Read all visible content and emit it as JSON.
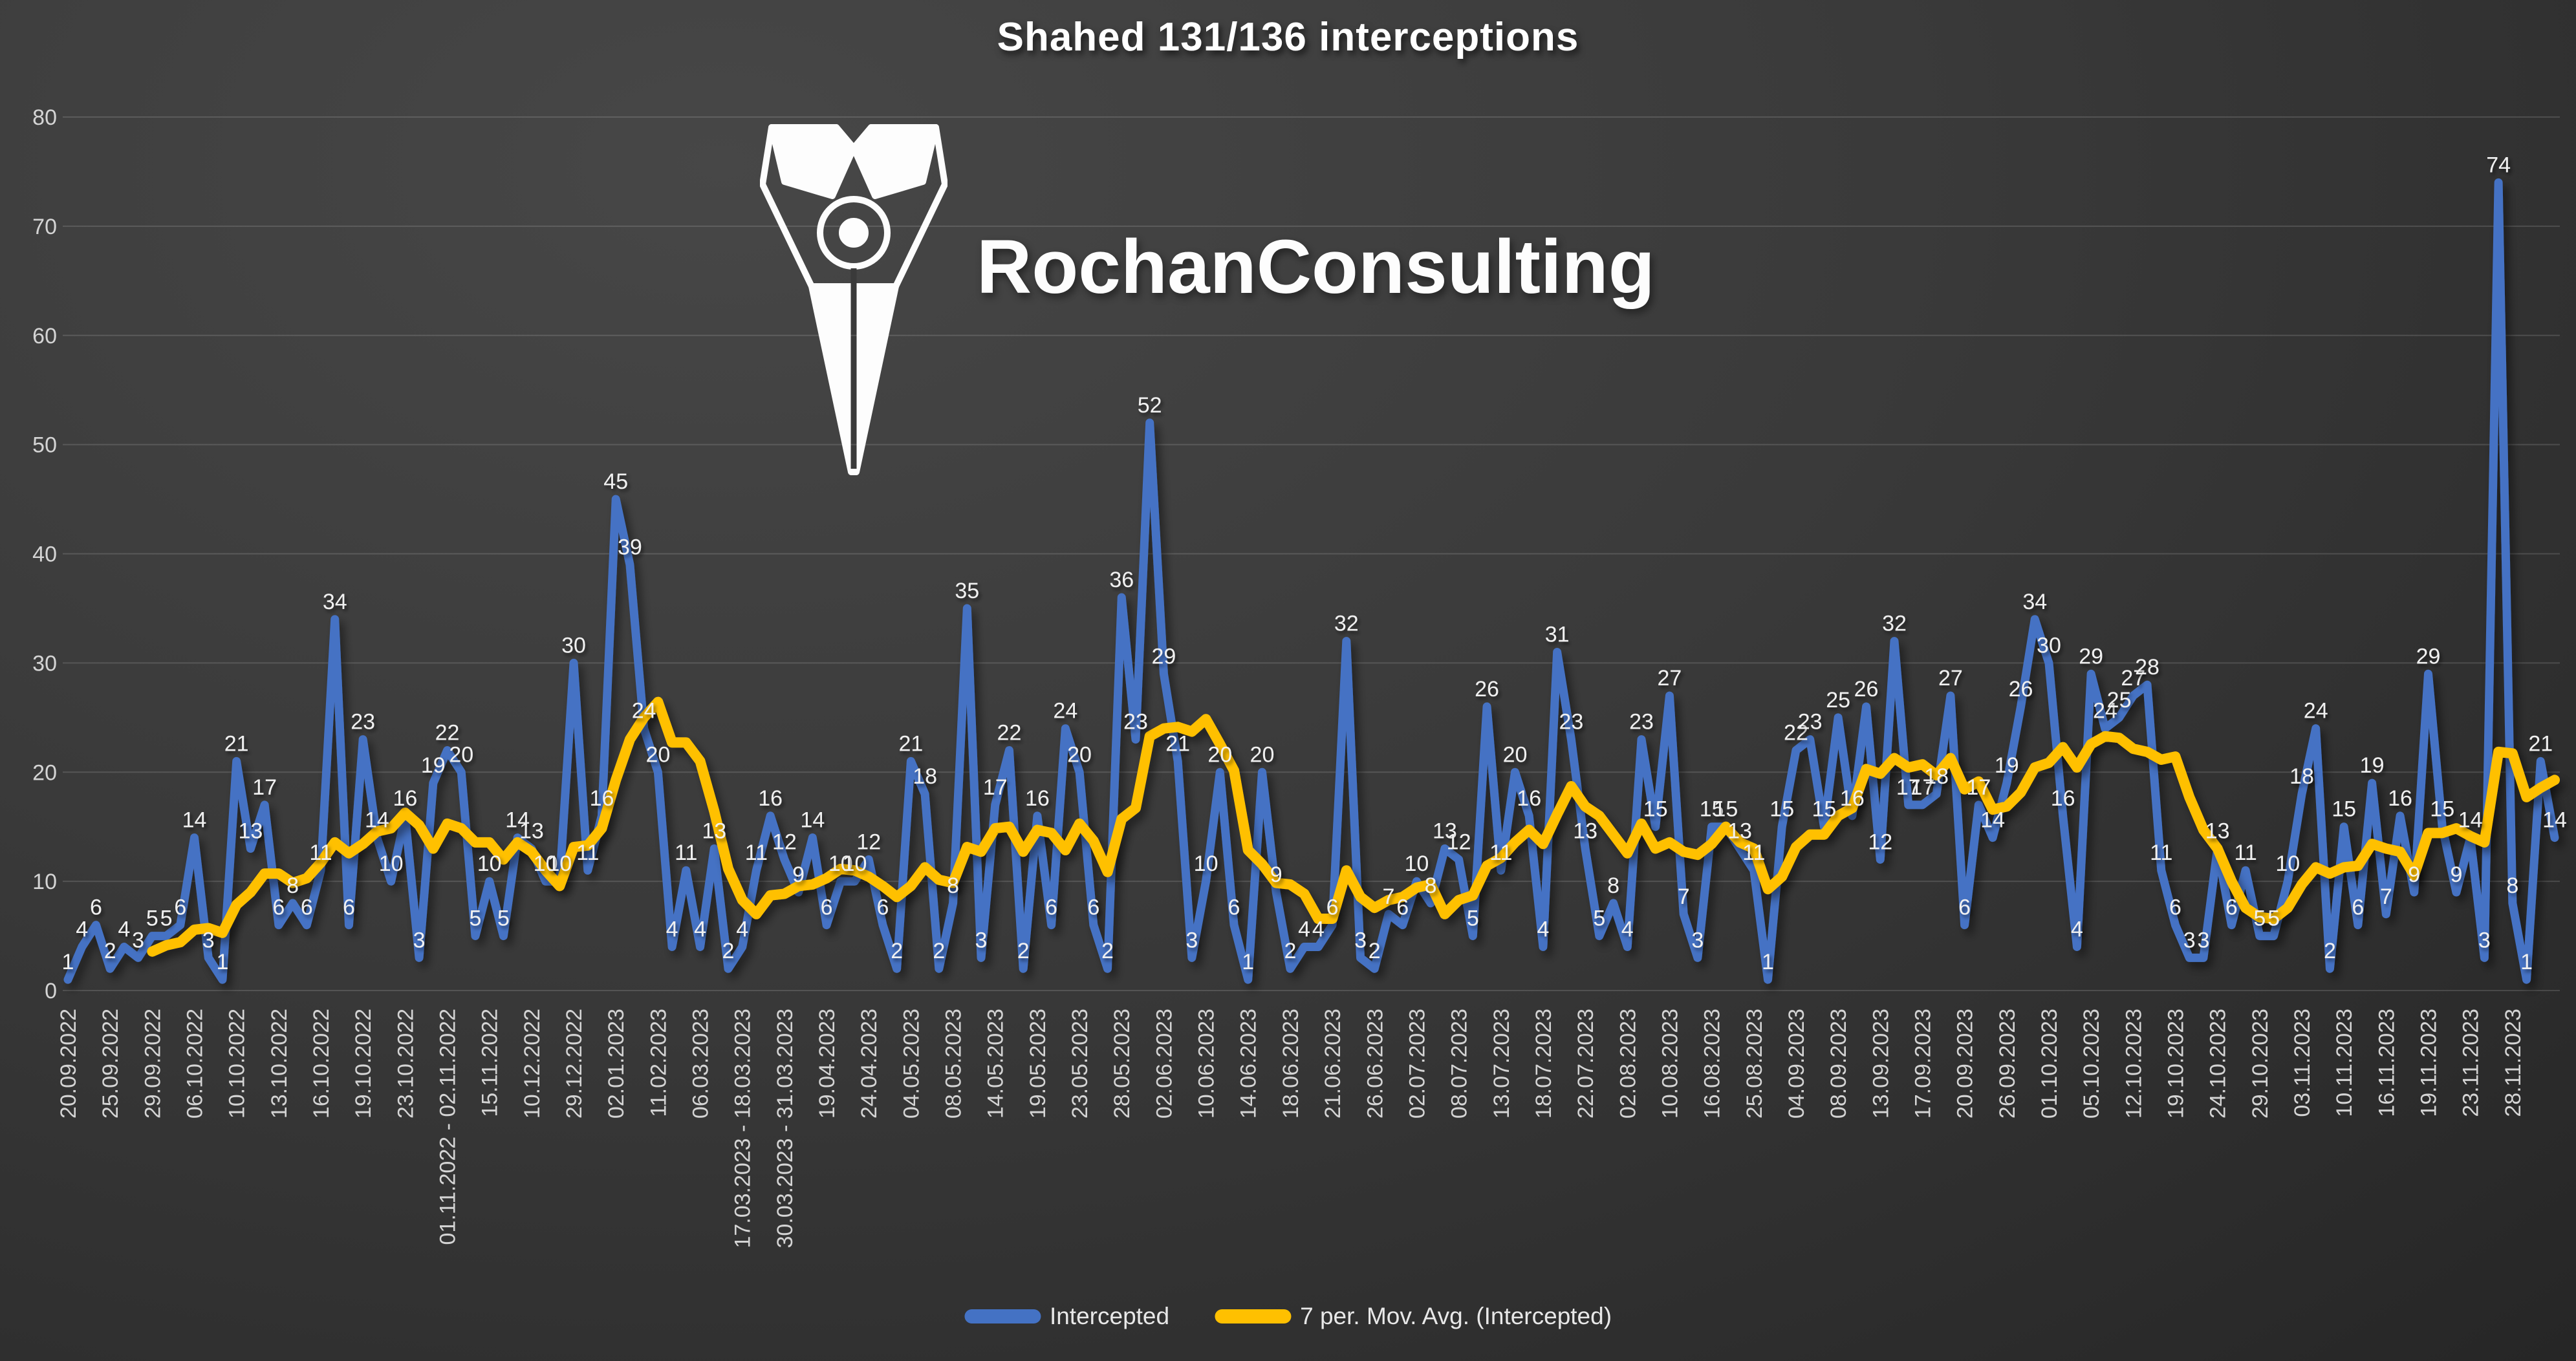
{
  "title": "Shahed 131/136 interceptions",
  "watermark": {
    "text": "RochanConsulting",
    "icon": "pen-nib-logo"
  },
  "legend": {
    "items": [
      {
        "label": "Intercepted",
        "color": "#4472C4"
      },
      {
        "label": "7 per. Mov. Avg. (Intercepted)",
        "color": "#FFC000"
      }
    ]
  },
  "chart_data": {
    "type": "line",
    "title": "Shahed 131/136 interceptions",
    "xlabel": "",
    "ylabel": "",
    "ylim": [
      0,
      80
    ],
    "y_ticks": [
      0,
      10,
      20,
      30,
      40,
      50,
      60,
      70,
      80
    ],
    "grid": "horizontal",
    "legend_position": "bottom",
    "data_labels": "above each point, white",
    "x_tick_interval": 3,
    "x_tick_labels": [
      "20.09.2022",
      "25.09.2022",
      "29.09.2022",
      "06.10.2022",
      "10.10.2022",
      "13.10.2022",
      "16.10.2022",
      "19.10.2022",
      "23.10.2022",
      "01.11.2022 - 02.11.2022",
      "15.11.2022",
      "10.12.2022",
      "29.12.2022",
      "02.01.2023",
      "11.02.2023",
      "06.03.2023",
      "17.03.2023 - 18.03.2023",
      "30.03.2023 - 31.03.2023",
      "19.04.2023",
      "24.04.2023",
      "04.05.2023",
      "08.05.2023",
      "14.05.2023",
      "19.05.2023",
      "23.05.2023",
      "28.05.2023",
      "02.06.2023",
      "10.06.2023",
      "14.06.2023",
      "18.06.2023",
      "21.06.2023",
      "26.06.2023",
      "02.07.2023",
      "08.07.2023",
      "13.07.2023",
      "18.07.2023",
      "22.07.2023",
      "02.08.2023",
      "10.08.2023",
      "16.08.2023",
      "25.08.2023",
      "04.09.2023",
      "08.09.2023",
      "13.09.2023",
      "17.09.2023",
      "20.09.2023",
      "26.09.2023",
      "01.10.2023",
      "05.10.2023",
      "12.10.2023",
      "19.10.2023",
      "24.10.2023",
      "29.10.2023",
      "03.11.2023",
      "10.11.2023",
      "16.11.2023",
      "19.11.2023",
      "23.11.2023",
      "28.11.2023"
    ],
    "series": [
      {
        "name": "Intercepted",
        "color": "#4472C4",
        "values": [
          1,
          4,
          6,
          2,
          4,
          3,
          5,
          5,
          6,
          14,
          3,
          1,
          21,
          13,
          17,
          6,
          8,
          6,
          11,
          34,
          6,
          23,
          14,
          10,
          16,
          3,
          19,
          22,
          20,
          5,
          10,
          5,
          14,
          13,
          10,
          10,
          30,
          11,
          16,
          45,
          39,
          24,
          20,
          4,
          11,
          4,
          13,
          2,
          4,
          11,
          16,
          12,
          9,
          14,
          6,
          10,
          10,
          12,
          6,
          2,
          21,
          18,
          2,
          8,
          35,
          3,
          17,
          22,
          2,
          16,
          6,
          24,
          20,
          6,
          2,
          36,
          23,
          52,
          29,
          21,
          3,
          10,
          20,
          6,
          1,
          20,
          9,
          2,
          4,
          4,
          6,
          32,
          3,
          2,
          7,
          6,
          10,
          8,
          13,
          12,
          5,
          26,
          11,
          20,
          16,
          4,
          31,
          23,
          13,
          5,
          8,
          4,
          23,
          15,
          27,
          7,
          3,
          15,
          15,
          13,
          11,
          1,
          15,
          22,
          23,
          15,
          25,
          16,
          26,
          12,
          32,
          17,
          17,
          18,
          27,
          6,
          17,
          14,
          19,
          26,
          34,
          30,
          16,
          4,
          29,
          24,
          25,
          27,
          28,
          11,
          6,
          3,
          3,
          13,
          6,
          11,
          5,
          5,
          10,
          18,
          24,
          2,
          15,
          6,
          19,
          7,
          16,
          9,
          29,
          15,
          9,
          14,
          3,
          74,
          8,
          1,
          21,
          14
        ]
      },
      {
        "name": "7 per. Mov. Avg. (Intercepted)",
        "color": "#FFC000",
        "derivation": "trailing 7-point moving average of Intercepted"
      }
    ]
  },
  "colors": {
    "background_top": "#474747",
    "background_bottom": "#262626",
    "gridline": "rgba(255,255,255,0.14)",
    "tick_text": "#d4d4d4",
    "data_label_text": "#f0f0f0",
    "title_text": "#ffffff"
  }
}
